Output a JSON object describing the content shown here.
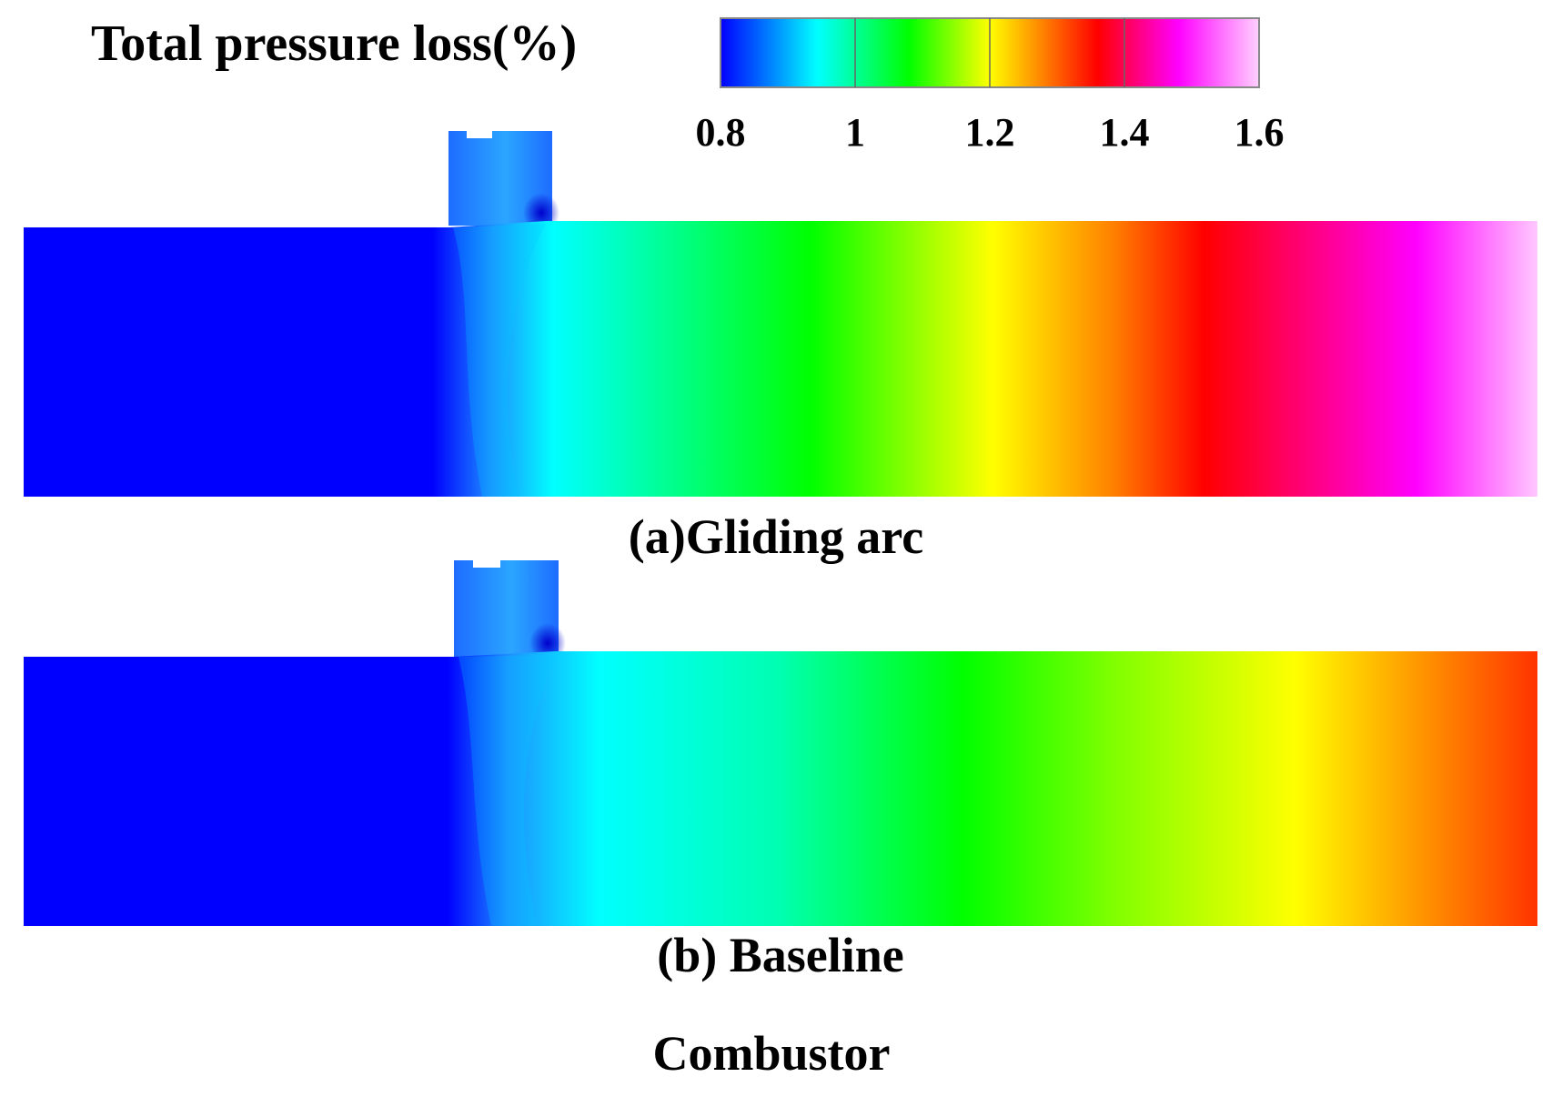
{
  "legend": {
    "title": "Total pressure loss(%)",
    "ticks": [
      "0.8",
      "1",
      "1.2",
      "1.4",
      "1.6"
    ],
    "colorscale": [
      "#0000ff",
      "#00ffff",
      "#00ff00",
      "#ffff00",
      "#ff0000",
      "#ff00ff",
      "#ffffff"
    ]
  },
  "panels": [
    {
      "caption": "(a)Gliding arc"
    },
    {
      "caption": "(b) Baseline"
    }
  ],
  "footer": "Combustor",
  "colors": {
    "background": "#ffffff",
    "text": "#000000"
  }
}
